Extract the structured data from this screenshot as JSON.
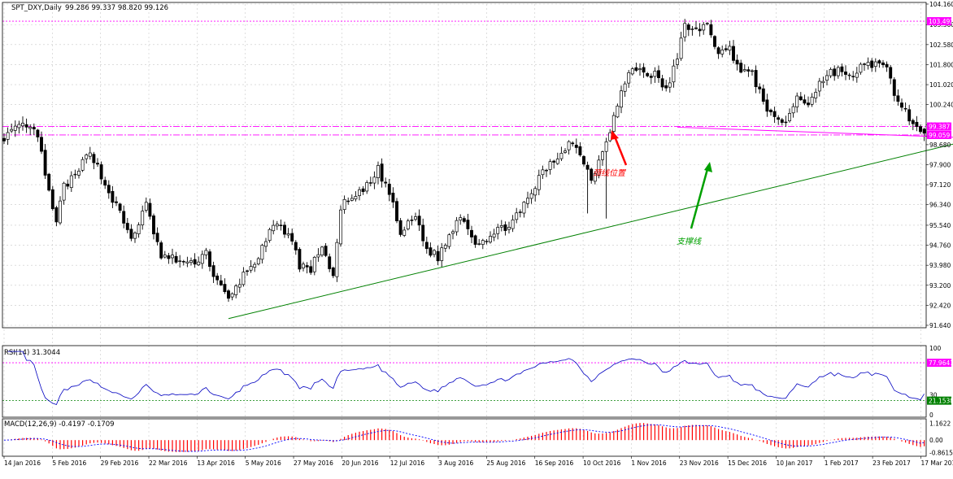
{
  "window": {
    "symbol_label": "SPT_DXY,Daily",
    "ohlc_label": "99.286 99.337 98.820 99.126"
  },
  "colors": {
    "background": "#ffffff",
    "grid": "#c8c8c8",
    "candle": "#000000",
    "resistance": "#ff00ff",
    "support": "#008000",
    "annotation_red": "#ff0000",
    "annotation_green": "#00a000",
    "rsi_line": "#0000c0",
    "macd_hist": "#ff0000",
    "macd_signal": "#0000ff",
    "tag_magenta": "#ff00ff",
    "tag_green": "#008000"
  },
  "chart_data": [
    {
      "type": "candlestick",
      "panel": "price",
      "title": "SPT_DXY,Daily",
      "ohlc_text": "99.286 99.337 98.820 99.126",
      "ylim": [
        91.64,
        104.16
      ],
      "y_ticks": [
        "104.160",
        "103.360",
        "102.580",
        "101.800",
        "101.020",
        "100.240",
        "99.460",
        "98.680",
        "97.900",
        "97.120",
        "96.340",
        "95.540",
        "94.760",
        "93.980",
        "93.200",
        "92.420",
        "91.640"
      ],
      "x_ticks": [
        "14 Jan 2016",
        "5 Feb 2016",
        "29 Feb 2016",
        "22 Mar 2016",
        "13 Apr 2016",
        "5 May 2016",
        "27 May 2016",
        "20 Jun 2016",
        "12 Jul 2016",
        "3 Aug 2016",
        "25 Aug 2016",
        "16 Sep 2016",
        "10 Oct 2016",
        "1 Nov 2016",
        "23 Nov 2016",
        "15 Dec 2016",
        "10 Jan 2017",
        "1 Feb 2017",
        "23 Feb 2017",
        "17 Mar 2017"
      ],
      "close_anchors": [
        [
          0,
          99.0
        ],
        [
          5,
          99.4
        ],
        [
          9,
          99.1
        ],
        [
          11,
          97.4
        ],
        [
          14,
          95.6
        ],
        [
          16,
          97.1
        ],
        [
          19,
          97.4
        ],
        [
          23,
          98.5
        ],
        [
          27,
          97.1
        ],
        [
          30,
          96.3
        ],
        [
          34,
          95.0
        ],
        [
          38,
          96.3
        ],
        [
          42,
          94.3
        ],
        [
          46,
          94.2
        ],
        [
          50,
          94.0
        ],
        [
          54,
          94.5
        ],
        [
          56,
          93.6
        ],
        [
          60,
          92.6
        ],
        [
          64,
          93.6
        ],
        [
          68,
          94.3
        ],
        [
          72,
          95.5
        ],
        [
          76,
          95.3
        ],
        [
          79,
          94.0
        ],
        [
          82,
          93.8
        ],
        [
          85,
          94.8
        ],
        [
          88,
          93.4
        ],
        [
          90,
          96.3
        ],
        [
          94,
          96.6
        ],
        [
          98,
          97.2
        ],
        [
          100,
          97.7
        ],
        [
          103,
          96.8
        ],
        [
          106,
          95.2
        ],
        [
          110,
          95.9
        ],
        [
          113,
          94.6
        ],
        [
          116,
          94.3
        ],
        [
          119,
          95.1
        ],
        [
          122,
          96.0
        ],
        [
          126,
          94.9
        ],
        [
          130,
          95.1
        ],
        [
          134,
          95.5
        ],
        [
          138,
          96.0
        ],
        [
          141,
          96.8
        ],
        [
          144,
          97.6
        ],
        [
          148,
          98.2
        ],
        [
          151,
          98.8
        ],
        [
          154,
          98.4
        ],
        [
          157,
          97.3
        ],
        [
          159,
          98.1
        ],
        [
          162,
          99.3
        ],
        [
          165,
          100.7
        ],
        [
          168,
          101.7
        ],
        [
          171,
          101.5
        ],
        [
          174,
          101.4
        ],
        [
          177,
          100.8
        ],
        [
          180,
          102.0
        ],
        [
          182,
          103.4
        ],
        [
          186,
          103.0
        ],
        [
          188,
          103.5
        ],
        [
          191,
          102.2
        ],
        [
          194,
          102.4
        ],
        [
          197,
          101.6
        ],
        [
          200,
          101.4
        ],
        [
          203,
          100.4
        ],
        [
          206,
          99.6
        ],
        [
          209,
          99.6
        ],
        [
          212,
          100.5
        ],
        [
          215,
          100.3
        ],
        [
          218,
          101.1
        ],
        [
          221,
          101.5
        ],
        [
          224,
          101.6
        ],
        [
          227,
          101.2
        ],
        [
          230,
          101.9
        ],
        [
          233,
          101.8
        ],
        [
          236,
          101.6
        ],
        [
          239,
          100.3
        ],
        [
          241,
          100.0
        ],
        [
          243,
          99.5
        ],
        [
          245,
          99.1
        ]
      ],
      "spikes": [
        [
          156,
          96.0
        ],
        [
          161,
          95.8
        ]
      ],
      "levels": [
        {
          "price": 103.492,
          "label": "103.492"
        },
        {
          "price": 99.387,
          "label": "99.387"
        },
        {
          "price": 99.059,
          "label": "99.059"
        }
      ],
      "support_line": {
        "from": [
          60,
          91.9
        ],
        "to": [
          305,
          100.5
        ],
        "label": "支撑线"
      },
      "neckline": {
        "from": [
          180,
          99.36
        ],
        "to": [
          305,
          98.7
        ],
        "label": "颈线位置"
      }
    },
    {
      "type": "line",
      "panel": "rsi",
      "title": "RSI(14) 31.3044",
      "ylim": [
        0,
        100
      ],
      "y_ticks": [
        "100",
        "30",
        "0"
      ],
      "levels": [
        {
          "value": 77.9641,
          "label": "77.9641"
        },
        {
          "value": 21.1538,
          "label": "21.1538"
        }
      ]
    },
    {
      "type": "bar",
      "panel": "macd",
      "title": "MACD(12,26,9) -0.4197 -0.1709",
      "ylim": [
        -1.05,
        1.35
      ],
      "y_ticks": [
        "1.1622",
        "0.00",
        "-0.8615"
      ]
    }
  ]
}
